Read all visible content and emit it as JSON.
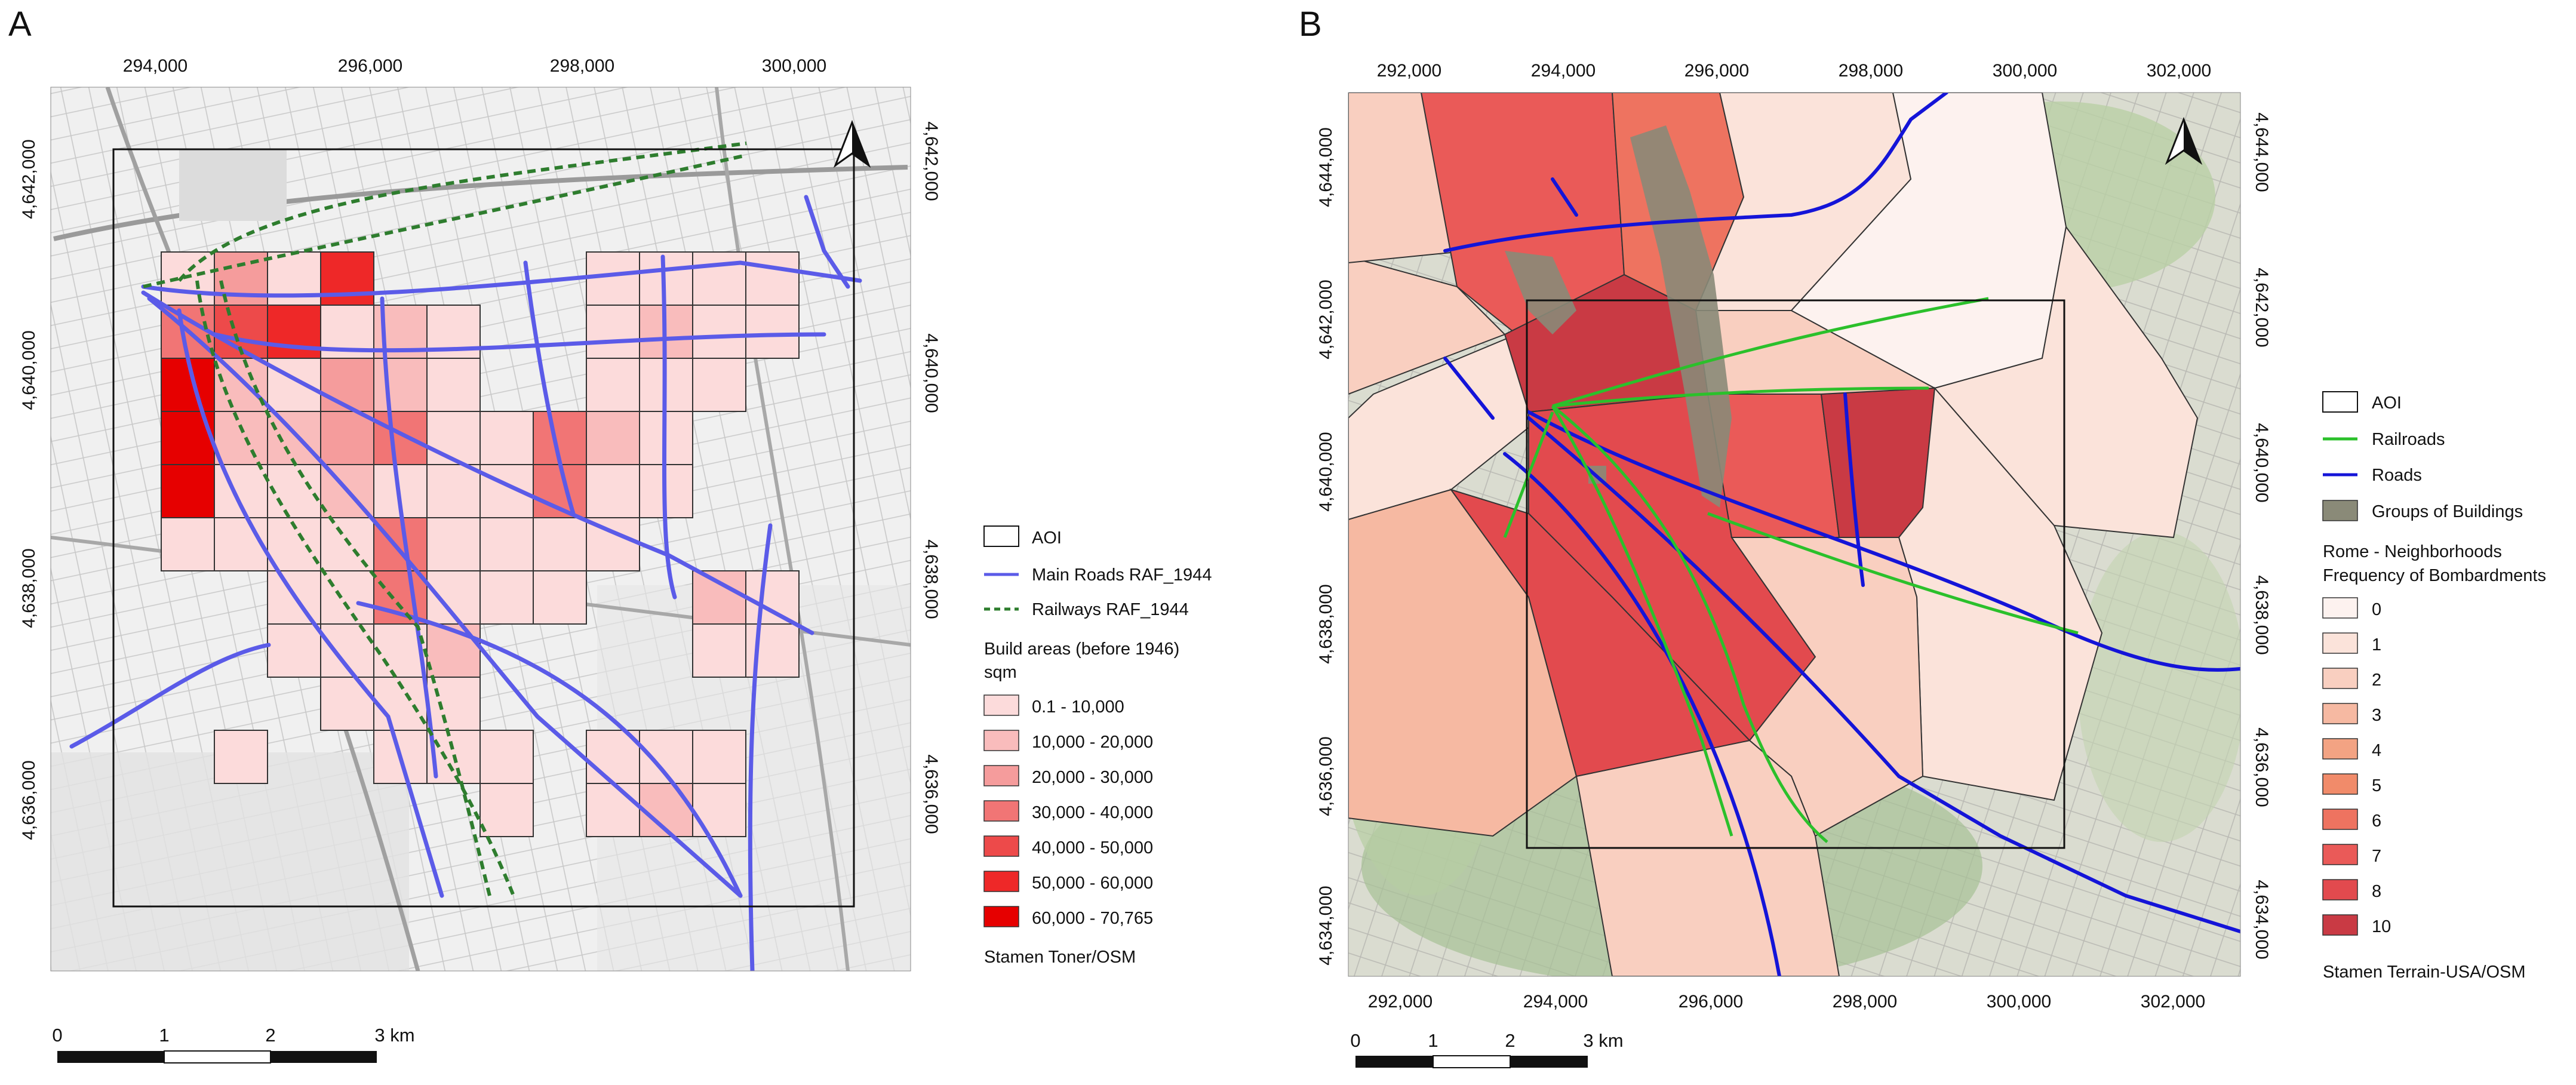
{
  "panels": [
    {
      "label": "A",
      "top_ticks": [
        "294,000",
        "296,000",
        "298,000",
        "300,000"
      ],
      "side_ticks": [
        "4,642,000",
        "4,640,000",
        "4,638,000",
        "4,636,000"
      ],
      "north_arrow": "north-arrow-icon",
      "legend": {
        "items": [
          {
            "label": "AOI",
            "symbol": "box",
            "color": "#ffffff"
          },
          {
            "label": "Main Roads RAF_1944",
            "symbol": "line",
            "color": "#5b5be8"
          },
          {
            "label": "Railways RAF_1944",
            "symbol": "dash",
            "color": "#2e7d2e"
          }
        ],
        "class_title": [
          "Build areas (before 1946)",
          "sqm"
        ],
        "classes": [
          {
            "label": "0.1 - 10,000",
            "color": "#fcdbdb"
          },
          {
            "label": "10,000 - 20,000",
            "color": "#f9bcbc"
          },
          {
            "label": "20,000 - 30,000",
            "color": "#f59c9c"
          },
          {
            "label": "30,000 - 40,000",
            "color": "#f17575"
          },
          {
            "label": "40,000 - 50,000",
            "color": "#ed4a4a"
          },
          {
            "label": "50,000 - 60,000",
            "color": "#ee2828"
          },
          {
            "label": "60,000 - 70,765",
            "color": "#e60000"
          }
        ],
        "source": "Stamen Toner/OSM"
      },
      "scalebar": {
        "labels": [
          "0",
          "1",
          "2",
          "3 km"
        ]
      }
    },
    {
      "label": "B",
      "top_ticks": [
        "292,000",
        "294,000",
        "296,000",
        "298,000",
        "300,000",
        "302,000"
      ],
      "side_ticks": [
        "4,644,000",
        "4,642,000",
        "4,640,000",
        "4,638,000",
        "4,636,000",
        "4,634,000"
      ],
      "north_arrow": "north-arrow-icon",
      "legend": {
        "items": [
          {
            "label": "AOI",
            "symbol": "box",
            "color": "#ffffff"
          },
          {
            "label": "Railroads",
            "symbol": "line",
            "color": "#2bc02b"
          },
          {
            "label": "Roads",
            "symbol": "line",
            "color": "#1414d8"
          },
          {
            "label": "Groups of Buildings",
            "symbol": "fill",
            "color": "#8a8a78"
          }
        ],
        "class_title": [
          "Rome - Neighborhoods",
          "Frequency of Bombardments"
        ],
        "classes": [
          {
            "label": "0",
            "color": "#fdf2ef"
          },
          {
            "label": "1",
            "color": "#fbe3da"
          },
          {
            "label": "2",
            "color": "#f9cfc0"
          },
          {
            "label": "3",
            "color": "#f6b9a2"
          },
          {
            "label": "4",
            "color": "#f3a383"
          },
          {
            "label": "5",
            "color": "#f18b6a"
          },
          {
            "label": "6",
            "color": "#ee7360"
          },
          {
            "label": "7",
            "color": "#ea5a58"
          },
          {
            "label": "8",
            "color": "#e24a4e"
          },
          {
            "label": "10",
            "color": "#c93a44"
          }
        ],
        "source": "Stamen Terrain-USA/OSM"
      },
      "scalebar": {
        "labels": [
          "0",
          "1",
          "2",
          "3 km"
        ]
      }
    }
  ]
}
